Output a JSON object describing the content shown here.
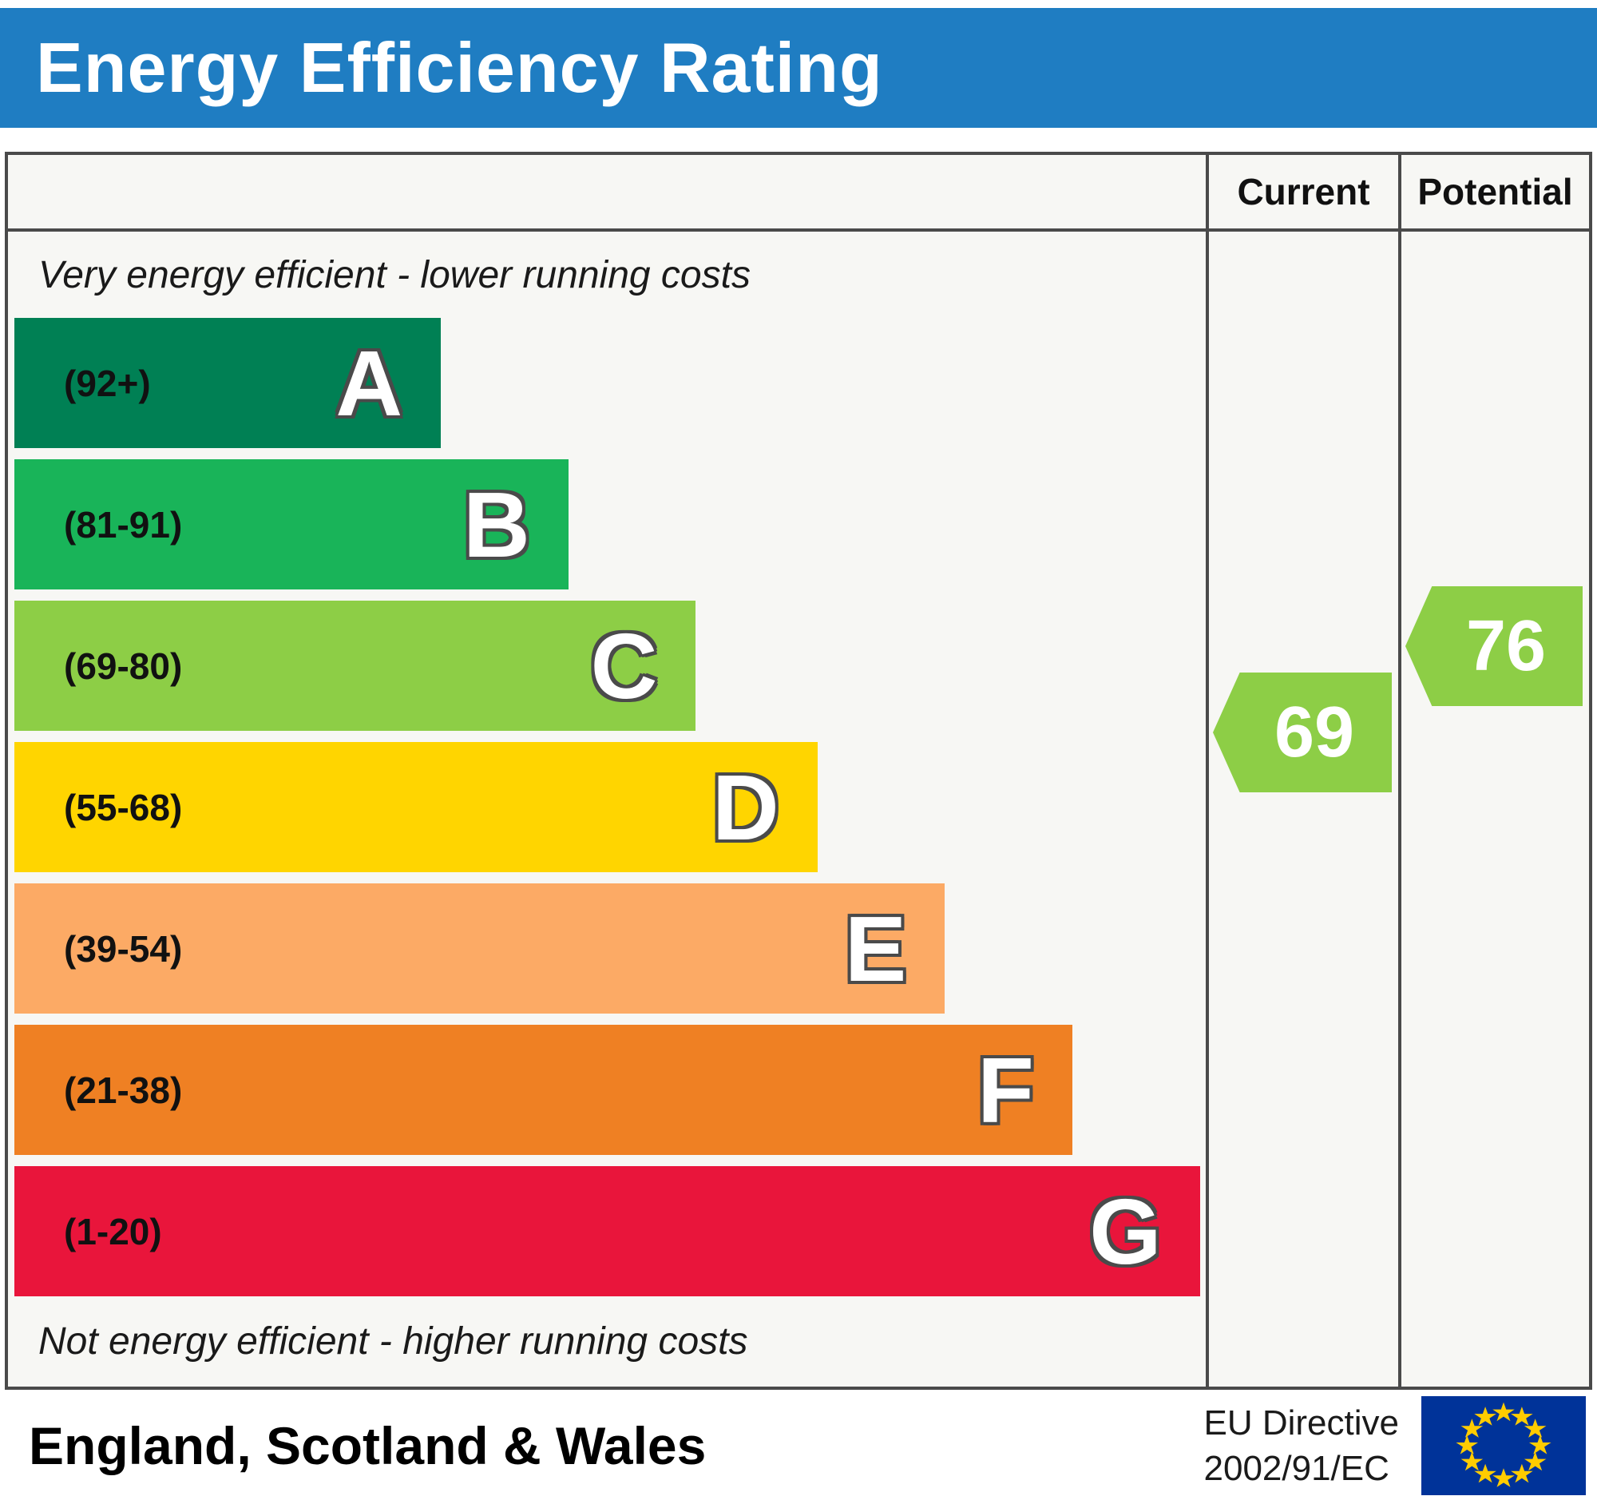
{
  "title": "Energy Efficiency Rating",
  "table": {
    "current_header": "Current",
    "potential_header": "Potential",
    "top_note": "Very energy efficient - lower running costs",
    "bottom_note": "Not energy efficient - higher running costs"
  },
  "chart_data": {
    "type": "bar",
    "subtype": "epc-energy-efficiency-rating",
    "bands": [
      {
        "letter": "A",
        "range_label": "(92+)",
        "range_min": 92,
        "range_max": 100,
        "color": "#008054",
        "width_pct": 35.8
      },
      {
        "letter": "B",
        "range_label": "(81-91)",
        "range_min": 81,
        "range_max": 91,
        "color": "#19b459",
        "width_pct": 46.5
      },
      {
        "letter": "C",
        "range_label": "(69-80)",
        "range_min": 69,
        "range_max": 80,
        "color": "#8dce46",
        "width_pct": 57.2
      },
      {
        "letter": "D",
        "range_label": "(55-68)",
        "range_min": 55,
        "range_max": 68,
        "color": "#ffd500",
        "width_pct": 67.4
      },
      {
        "letter": "E",
        "range_label": "(39-54)",
        "range_min": 39,
        "range_max": 54,
        "color": "#fcaa65",
        "width_pct": 78.1
      },
      {
        "letter": "F",
        "range_label": "(21-38)",
        "range_min": 21,
        "range_max": 38,
        "color": "#ef8023",
        "width_pct": 88.8
      },
      {
        "letter": "G",
        "range_label": "(1-20)",
        "range_min": 1,
        "range_max": 20,
        "color": "#e9153b",
        "width_pct": 99.5
      }
    ],
    "current": {
      "value": 69,
      "band": "C",
      "color": "#8dce46"
    },
    "potential": {
      "value": 76,
      "band": "C",
      "color": "#8dce46"
    }
  },
  "footer": {
    "region": "England, Scotland & Wales",
    "directive_line1": "EU Directive",
    "directive_line2": "2002/91/EC"
  },
  "colors": {
    "header_bg": "#1f7dc2",
    "header_text": "#ffffff",
    "border": "#4a4a4a",
    "chart_bg": "#f7f7f4",
    "eu_flag_blue": "#003399",
    "eu_flag_star": "#ffcc00"
  }
}
